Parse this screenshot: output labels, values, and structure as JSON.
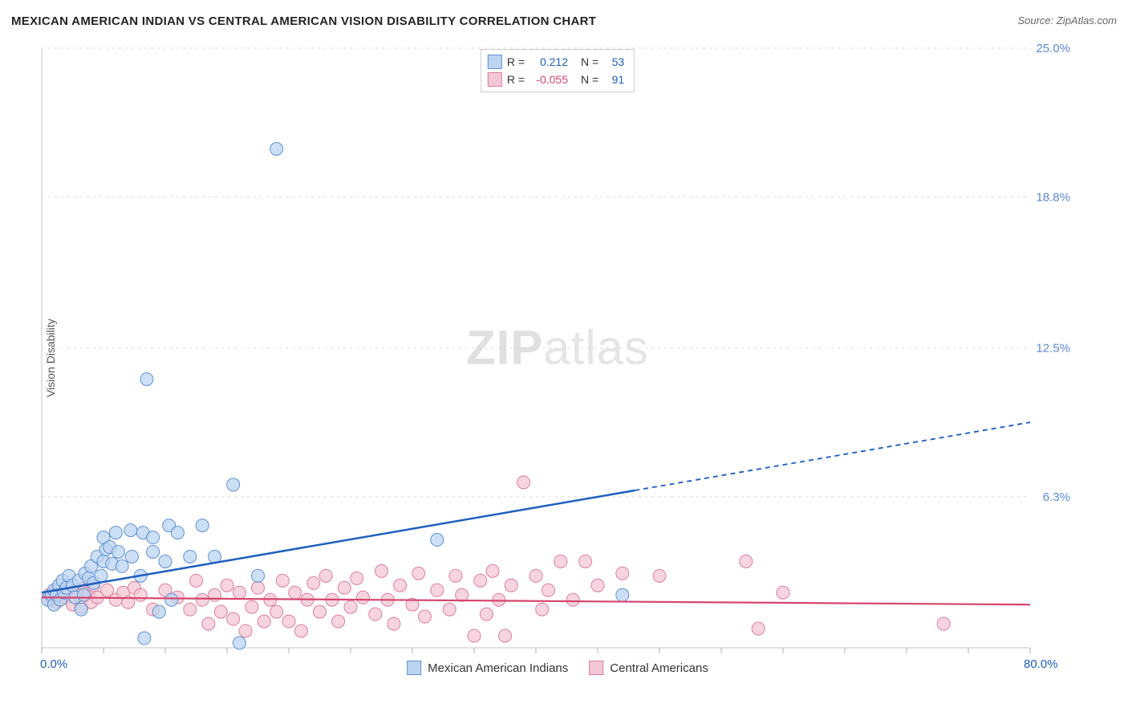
{
  "header": {
    "title": "MEXICAN AMERICAN INDIAN VS CENTRAL AMERICAN VISION DISABILITY CORRELATION CHART",
    "source": "Source: ZipAtlas.com"
  },
  "ylabel": "Vision Disability",
  "watermark_a": "ZIP",
  "watermark_b": "atlas",
  "chart": {
    "type": "scatter",
    "background_color": "#ffffff",
    "grid_color": "#dcdcdc",
    "axis_color": "#d9d9d9",
    "tick_color": "#b0b0b0",
    "x": {
      "min": 0.0,
      "max": 80.0,
      "label_min": "0.0%",
      "label_max": "80.0%",
      "label_color": "#1f5fbf",
      "ticks": [
        0,
        5,
        10,
        15,
        20,
        25,
        30,
        35,
        40,
        45,
        50,
        55,
        60,
        65,
        70,
        75,
        80
      ]
    },
    "y": {
      "min": 0.0,
      "max": 25.0,
      "gridlines": [
        6.3,
        12.5,
        18.8,
        25.0
      ],
      "labels": [
        "6.3%",
        "12.5%",
        "18.8%",
        "25.0%"
      ],
      "label_color": "#5a87d6"
    },
    "series": [
      {
        "name": "Mexican American Indians",
        "marker_fill": "#bcd4f0",
        "marker_stroke": "#5e91d3",
        "marker_radius": 8,
        "trend": {
          "color": "#1f5fbf",
          "width": 2.5,
          "y_at_x0": 2.3,
          "y_at_x80": 9.4,
          "solid_until_x": 48
        },
        "R_label": "R =",
        "R": "0.212",
        "N_label": "N =",
        "N": "53",
        "R_color": "#1f5fbf",
        "N_color": "#1f5fbf",
        "points": [
          [
            0.5,
            2.0
          ],
          [
            0.8,
            2.2
          ],
          [
            1.0,
            1.8
          ],
          [
            1.0,
            2.4
          ],
          [
            1.2,
            2.2
          ],
          [
            1.4,
            2.6
          ],
          [
            1.5,
            2.0
          ],
          [
            1.7,
            2.8
          ],
          [
            1.8,
            2.3
          ],
          [
            2.0,
            2.5
          ],
          [
            2.2,
            3.0
          ],
          [
            2.5,
            2.6
          ],
          [
            2.7,
            2.1
          ],
          [
            3.0,
            2.8
          ],
          [
            3.2,
            1.6
          ],
          [
            3.5,
            3.1
          ],
          [
            3.4,
            2.2
          ],
          [
            3.8,
            2.9
          ],
          [
            4.0,
            3.4
          ],
          [
            4.2,
            2.7
          ],
          [
            4.5,
            3.8
          ],
          [
            4.8,
            3.0
          ],
          [
            5.0,
            3.6
          ],
          [
            5.0,
            4.6
          ],
          [
            5.2,
            4.1
          ],
          [
            5.5,
            4.2
          ],
          [
            5.7,
            3.5
          ],
          [
            6.0,
            4.8
          ],
          [
            6.2,
            4.0
          ],
          [
            6.5,
            3.4
          ],
          [
            7.3,
            3.8
          ],
          [
            7.2,
            4.9
          ],
          [
            8.0,
            3.0
          ],
          [
            8.2,
            4.8
          ],
          [
            8.3,
            0.4
          ],
          [
            9.0,
            4.0
          ],
          [
            9.0,
            4.6
          ],
          [
            9.5,
            1.5
          ],
          [
            10.0,
            3.6
          ],
          [
            10.3,
            5.1
          ],
          [
            10.5,
            2.0
          ],
          [
            11.0,
            4.8
          ],
          [
            12.0,
            3.8
          ],
          [
            13.0,
            5.1
          ],
          [
            14.0,
            3.8
          ],
          [
            15.5,
            6.8
          ],
          [
            16.0,
            0.2
          ],
          [
            17.5,
            3.0
          ],
          [
            8.5,
            11.2
          ],
          [
            19.0,
            20.8
          ],
          [
            32.0,
            4.5
          ],
          [
            47.0,
            2.2
          ]
        ]
      },
      {
        "name": "Central Americans",
        "marker_fill": "#f3c7d3",
        "marker_stroke": "#dd7f9b",
        "marker_radius": 8,
        "trend": {
          "color": "#d6456f",
          "width": 2.2,
          "y_at_x0": 2.1,
          "y_at_x80": 1.8,
          "solid_until_x": 80
        },
        "R_label": "R =",
        "R": "-0.055",
        "N_label": "N =",
        "N": "91",
        "R_color": "#d6456f",
        "N_color": "#1f5fbf",
        "points": [
          [
            0.6,
            2.2
          ],
          [
            0.8,
            2.0
          ],
          [
            1.0,
            2.3
          ],
          [
            1.2,
            1.9
          ],
          [
            1.5,
            2.2
          ],
          [
            1.8,
            2.4
          ],
          [
            2.0,
            2.1
          ],
          [
            2.3,
            2.3
          ],
          [
            2.5,
            1.8
          ],
          [
            2.8,
            2.4
          ],
          [
            3.0,
            2.2
          ],
          [
            3.2,
            1.7
          ],
          [
            3.5,
            2.5
          ],
          [
            3.5,
            2.2
          ],
          [
            3.8,
            2.3
          ],
          [
            4.0,
            1.9
          ],
          [
            4.2,
            2.6
          ],
          [
            4.5,
            2.1
          ],
          [
            5.3,
            2.4
          ],
          [
            6.0,
            2.0
          ],
          [
            6.6,
            2.3
          ],
          [
            7.0,
            1.9
          ],
          [
            7.5,
            2.5
          ],
          [
            8.0,
            2.2
          ],
          [
            9.0,
            1.6
          ],
          [
            10.0,
            2.4
          ],
          [
            11.0,
            2.1
          ],
          [
            12.0,
            1.6
          ],
          [
            12.5,
            2.8
          ],
          [
            13.0,
            2.0
          ],
          [
            13.5,
            1.0
          ],
          [
            14.0,
            2.2
          ],
          [
            14.5,
            1.5
          ],
          [
            15.0,
            2.6
          ],
          [
            15.5,
            1.2
          ],
          [
            16.0,
            2.3
          ],
          [
            16.5,
            0.7
          ],
          [
            17.0,
            1.7
          ],
          [
            17.5,
            2.5
          ],
          [
            18.0,
            1.1
          ],
          [
            18.5,
            2.0
          ],
          [
            19.0,
            1.5
          ],
          [
            19.5,
            2.8
          ],
          [
            20.0,
            1.1
          ],
          [
            20.5,
            2.3
          ],
          [
            21.0,
            0.7
          ],
          [
            21.5,
            2.0
          ],
          [
            22.0,
            2.7
          ],
          [
            22.5,
            1.5
          ],
          [
            23.0,
            3.0
          ],
          [
            23.5,
            2.0
          ],
          [
            24.0,
            1.1
          ],
          [
            24.5,
            2.5
          ],
          [
            25.0,
            1.7
          ],
          [
            25.5,
            2.9
          ],
          [
            26.0,
            2.1
          ],
          [
            27.0,
            1.4
          ],
          [
            27.5,
            3.2
          ],
          [
            28.0,
            2.0
          ],
          [
            28.5,
            1.0
          ],
          [
            29.0,
            2.6
          ],
          [
            30.0,
            1.8
          ],
          [
            30.5,
            3.1
          ],
          [
            31.0,
            1.3
          ],
          [
            32.0,
            2.4
          ],
          [
            33.0,
            1.6
          ],
          [
            33.5,
            3.0
          ],
          [
            34.0,
            2.2
          ],
          [
            35.0,
            0.5
          ],
          [
            35.5,
            2.8
          ],
          [
            36.0,
            1.4
          ],
          [
            36.5,
            3.2
          ],
          [
            37.0,
            2.0
          ],
          [
            37.5,
            0.5
          ],
          [
            38.0,
            2.6
          ],
          [
            39.0,
            6.9
          ],
          [
            40.0,
            3.0
          ],
          [
            40.5,
            1.6
          ],
          [
            41.0,
            2.4
          ],
          [
            42.0,
            3.6
          ],
          [
            43.0,
            2.0
          ],
          [
            44.0,
            3.6
          ],
          [
            45.0,
            2.6
          ],
          [
            47.0,
            3.1
          ],
          [
            50.0,
            3.0
          ],
          [
            57.0,
            3.6
          ],
          [
            58.0,
            0.8
          ],
          [
            60.0,
            2.3
          ],
          [
            73.0,
            1.0
          ]
        ]
      }
    ]
  },
  "bottom_legend": [
    {
      "label": "Mexican American Indians",
      "fill": "#bcd4f0",
      "stroke": "#5e91d3"
    },
    {
      "label": "Central Americans",
      "fill": "#f3c7d3",
      "stroke": "#dd7f9b"
    }
  ]
}
